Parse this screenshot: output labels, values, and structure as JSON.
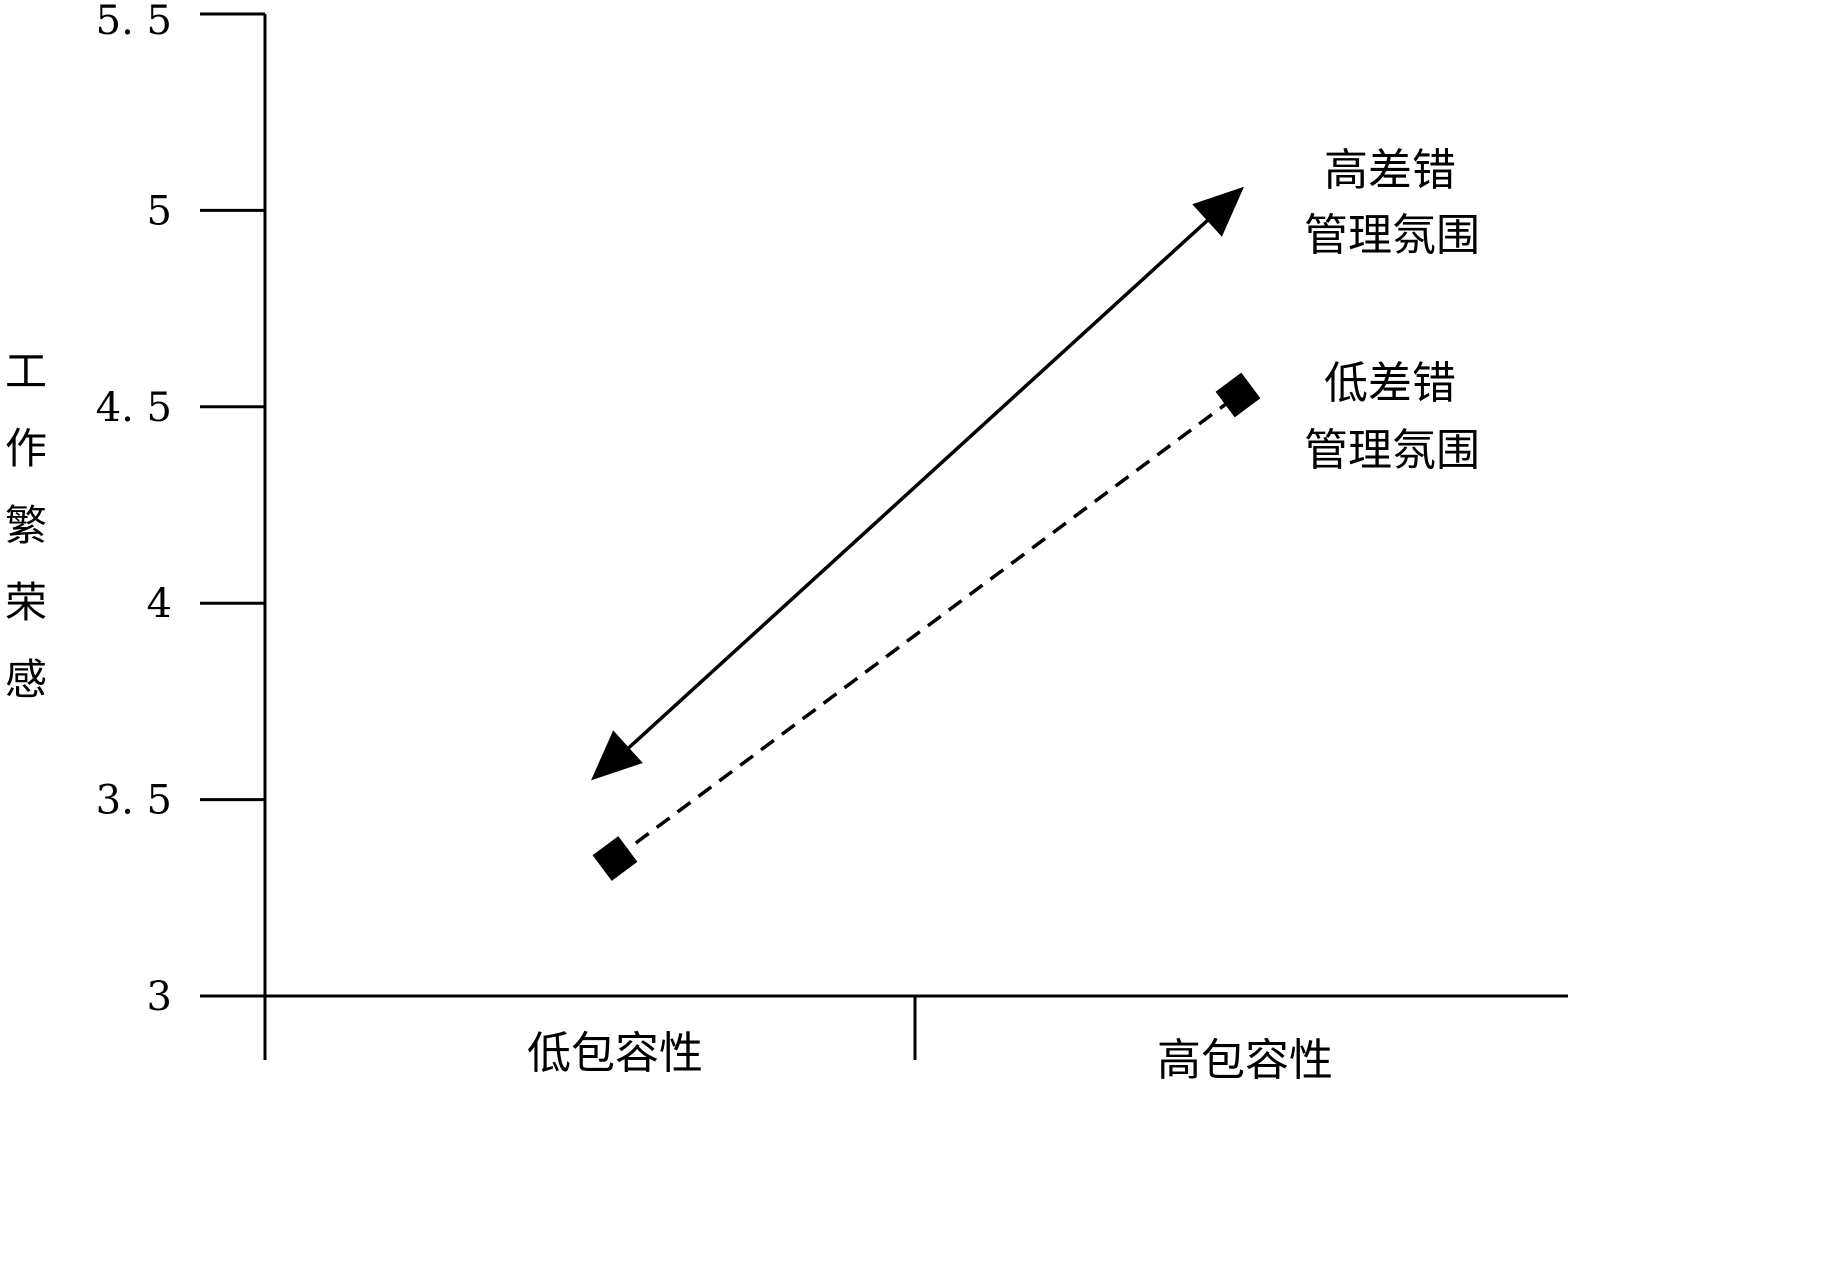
{
  "chart_data": {
    "type": "line",
    "ylabel": "工作繁荣感",
    "categories": [
      "低包容性",
      "高包容性"
    ],
    "yticks": [
      "5. 5",
      "5",
      "4. 5",
      "4",
      "3. 5",
      "3"
    ],
    "ytick_values": [
      5.5,
      5,
      4.5,
      4,
      3.5,
      3
    ],
    "ylim": [
      3,
      5.5
    ],
    "grid": false,
    "legend_placement": "right, next to line ends",
    "series": [
      {
        "name": "高差错管理氛围",
        "label_lines": [
          "高差错",
          "管理氛围"
        ],
        "values": [
          3.6,
          5.05
        ],
        "style": "solid",
        "marker": "triangle",
        "color": "#000000"
      },
      {
        "name": "低差错管理氛围",
        "label_lines": [
          "低差错",
          "管理氛围"
        ],
        "values": [
          3.35,
          4.53
        ],
        "style": "dashed",
        "marker": "square",
        "color": "#000000"
      }
    ]
  }
}
